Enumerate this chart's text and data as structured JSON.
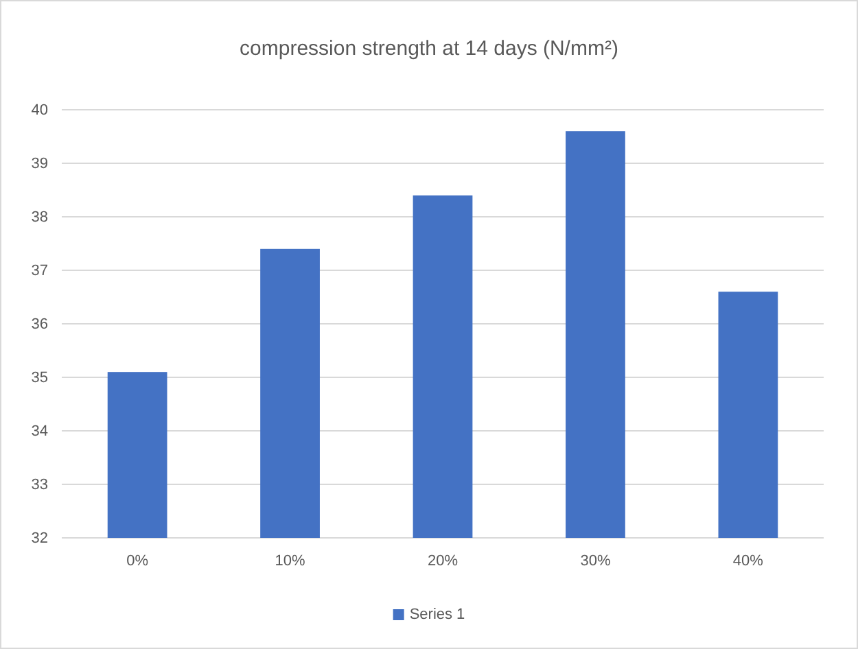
{
  "chart_data": {
    "type": "bar",
    "title": "compression strength at 14 days (N/mm²)",
    "categories": [
      "0%",
      "10%",
      "20%",
      "30%",
      "40%"
    ],
    "series": [
      {
        "name": "Series 1",
        "color": "#4472c4",
        "values": [
          35.1,
          37.4,
          38.4,
          39.6,
          36.6
        ]
      }
    ],
    "ylim": [
      32,
      40
    ],
    "yticks": [
      32,
      33,
      34,
      35,
      36,
      37,
      38,
      39,
      40
    ],
    "grid": "y",
    "legend": "bottom"
  }
}
